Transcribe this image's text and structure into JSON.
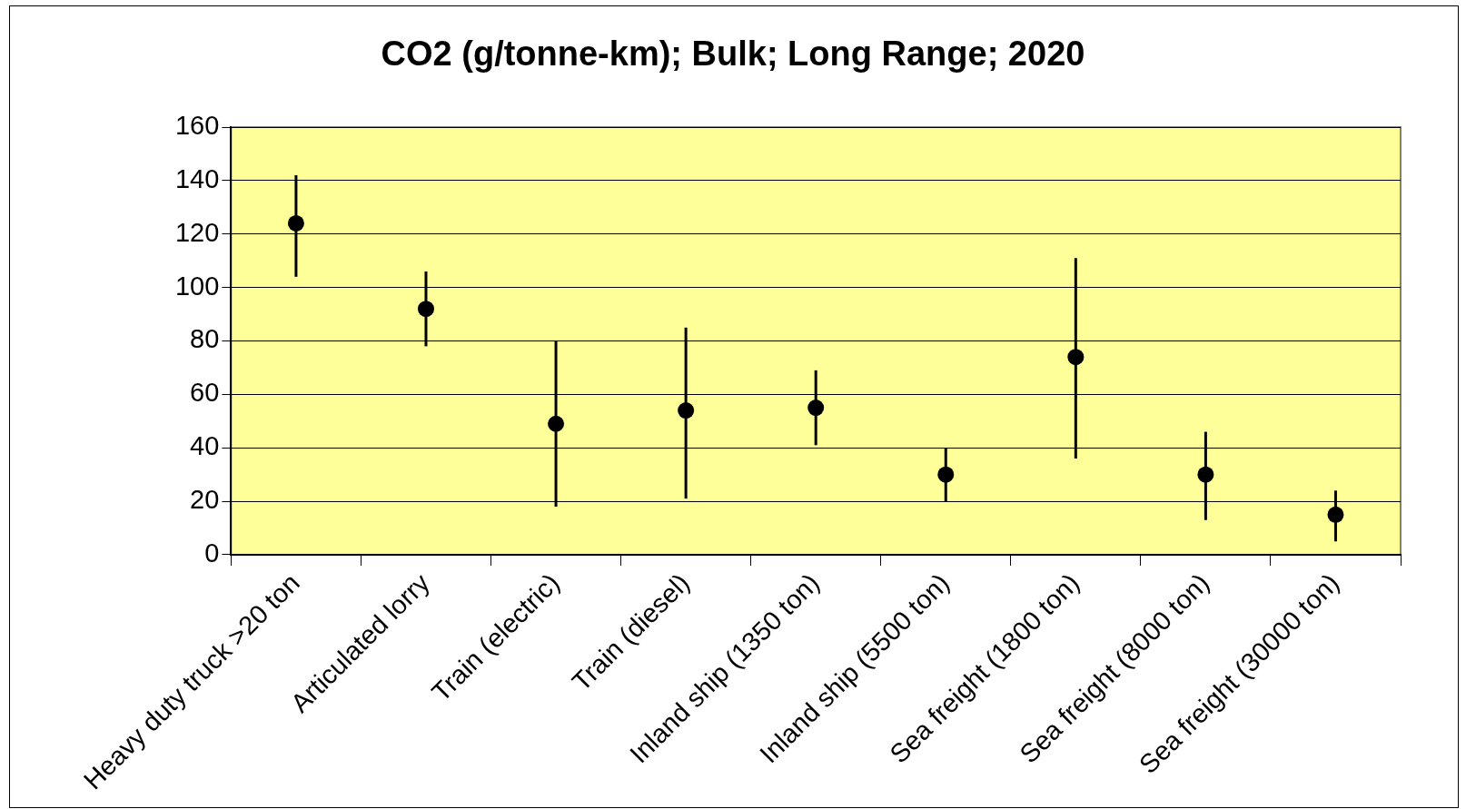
{
  "chart_data": {
    "type": "scatter",
    "title": "CO2 (g/tonne-km); Bulk; Long Range; 2020",
    "categories": [
      "Heavy duty truck >20 ton",
      "Articulated lorry",
      "Train (electric)",
      "Train (diesel)",
      "Inland ship (1350 ton)",
      "Inland ship (5500 ton)",
      "Sea freight (1800 ton)",
      "Sea freight (8000 ton)",
      "Sea freight (30000 ton)"
    ],
    "values": [
      124,
      92,
      49,
      54,
      55,
      30,
      74,
      30,
      15
    ],
    "errors": [
      [
        104,
        142
      ],
      [
        78,
        106
      ],
      [
        18,
        80
      ],
      [
        21,
        85
      ],
      [
        41,
        69
      ],
      [
        20,
        40
      ],
      [
        36,
        111
      ],
      [
        13,
        46
      ],
      [
        5,
        24
      ]
    ],
    "color": "#000000",
    "ylim": [
      0,
      160
    ],
    "yticks": [
      0,
      20,
      40,
      60,
      80,
      100,
      120,
      140,
      160
    ],
    "grid": "y",
    "marker": "circle",
    "legend": false
  }
}
